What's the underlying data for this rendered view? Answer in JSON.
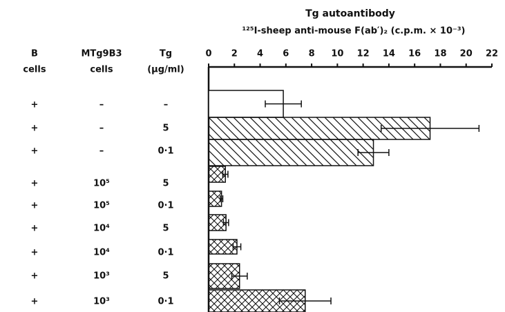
{
  "chart_data": {
    "type": "hbar",
    "title": "Tg autoantibody",
    "xlabel": "¹²⁵I-sheep anti-mouse F(ab′)₂ (c.p.m. × 10⁻³)",
    "table": {
      "headers": [
        [
          "B",
          "cells"
        ],
        [
          "MTg9B3",
          "cells"
        ],
        [
          "Tg",
          "(µg/ml)"
        ]
      ],
      "rows": [
        [
          "+",
          "–",
          "–"
        ],
        [
          "+",
          "–",
          "5"
        ],
        [
          "+",
          "–",
          "0·1"
        ],
        [
          "+",
          "10⁵",
          "5"
        ],
        [
          "+",
          "10⁵",
          "0·1"
        ],
        [
          "+",
          "10⁴",
          "5"
        ],
        [
          "+",
          "10⁴",
          "0·1"
        ],
        [
          "+",
          "10³",
          "5"
        ],
        [
          "+",
          "10³",
          "0·1"
        ]
      ]
    },
    "values": [
      5.8,
      17.2,
      12.8,
      1.3,
      1.0,
      1.35,
      2.2,
      2.4,
      7.5
    ],
    "errors": [
      1.4,
      3.8,
      1.2,
      0.2,
      0.1,
      0.2,
      0.3,
      0.6,
      2.0
    ],
    "fills": [
      "none",
      "hatch",
      "hatch",
      "cross",
      "cross",
      "cross",
      "cross",
      "cross",
      "cross"
    ],
    "xlim": [
      0,
      22
    ],
    "xticks": [
      0,
      2,
      4,
      6,
      8,
      10,
      12,
      14,
      16,
      18,
      20,
      22
    ]
  }
}
